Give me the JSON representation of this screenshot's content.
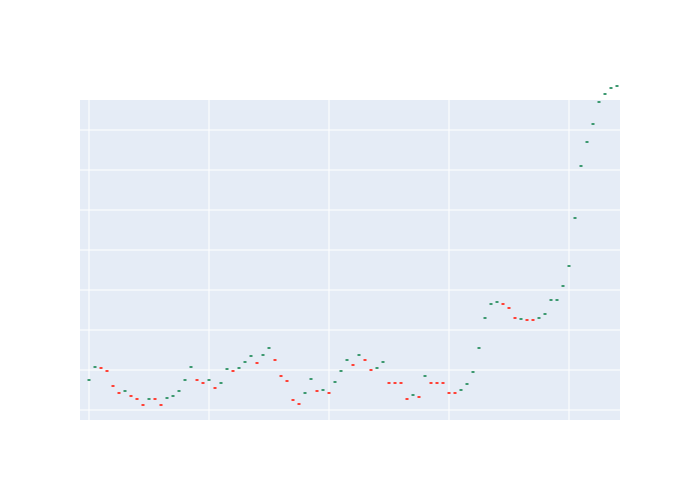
{
  "chart_data": {
    "type": "ohlc",
    "title": "",
    "xlabel": "",
    "ylabel": "",
    "ylim": [
      0,
      16
    ],
    "grid": true,
    "legend": "none",
    "increasing_color": "#3D9970",
    "decreasing_color": "#FF4136",
    "background_color": "#E5ECF6",
    "grid_color": "#FFFFFF",
    "x": [
      0,
      1,
      2,
      3,
      4,
      5,
      6,
      7,
      8,
      9,
      10,
      11,
      12,
      13,
      14,
      15,
      16,
      17,
      18,
      19,
      20,
      21,
      22,
      23,
      24,
      25,
      26,
      27,
      28,
      29,
      30,
      31,
      32,
      33,
      34,
      35,
      36,
      37,
      38,
      39,
      40,
      41,
      42,
      43,
      44,
      45,
      46,
      47,
      48,
      49,
      50,
      51,
      52,
      53,
      54,
      55,
      56,
      57,
      58,
      59,
      60,
      61,
      62,
      63,
      64,
      65,
      66,
      67,
      68,
      69,
      70,
      71,
      72,
      73,
      74,
      75,
      76,
      77,
      78,
      79,
      80,
      81,
      82,
      83,
      84,
      85,
      86,
      87,
      88
    ],
    "values": [
      2.0,
      2.65,
      2.6,
      2.45,
      1.7,
      1.35,
      1.45,
      1.2,
      1.05,
      0.75,
      1.05,
      1.05,
      0.75,
      1.1,
      1.2,
      1.45,
      2.0,
      2.65,
      2.0,
      1.85,
      2.0,
      1.6,
      1.85,
      2.55,
      2.45,
      2.6,
      2.9,
      3.2,
      2.85,
      3.25,
      3.6,
      3.0,
      2.2,
      1.95,
      1.0,
      0.8,
      1.35,
      2.05,
      1.45,
      1.5,
      1.35,
      1.9,
      2.45,
      3.0,
      2.75,
      3.25,
      3.0,
      2.5,
      2.6,
      2.9,
      1.85,
      1.85,
      1.85,
      1.05,
      1.25,
      1.15,
      2.2,
      1.85,
      1.85,
      1.85,
      1.35,
      1.35,
      1.5,
      1.8,
      2.4,
      3.6,
      5.1,
      5.8,
      5.9,
      5.8,
      5.6,
      5.1,
      5.05,
      5.0,
      5.0,
      5.1,
      5.3,
      6.0,
      6.0,
      6.7,
      7.7,
      10.1,
      12.7,
      13.9,
      14.8,
      15.9,
      16.3,
      16.6,
      16.7
    ],
    "direction": [
      "up",
      "up",
      "down",
      "down",
      "down",
      "down",
      "up",
      "down",
      "down",
      "down",
      "up",
      "down",
      "down",
      "up",
      "up",
      "up",
      "up",
      "up",
      "down",
      "down",
      "up",
      "down",
      "up",
      "up",
      "down",
      "up",
      "up",
      "up",
      "down",
      "up",
      "up",
      "down",
      "down",
      "down",
      "down",
      "down",
      "up",
      "up",
      "down",
      "up",
      "down",
      "up",
      "up",
      "up",
      "down",
      "up",
      "down",
      "down",
      "up",
      "up",
      "down",
      "down",
      "down",
      "down",
      "up",
      "down",
      "up",
      "down",
      "down",
      "down",
      "down",
      "down",
      "up",
      "up",
      "up",
      "up",
      "up",
      "up",
      "up",
      "down",
      "down",
      "down",
      "up",
      "down",
      "down",
      "up",
      "up",
      "up",
      "up",
      "up",
      "up",
      "up",
      "up",
      "up",
      "up",
      "up",
      "up",
      "up",
      "up"
    ]
  }
}
